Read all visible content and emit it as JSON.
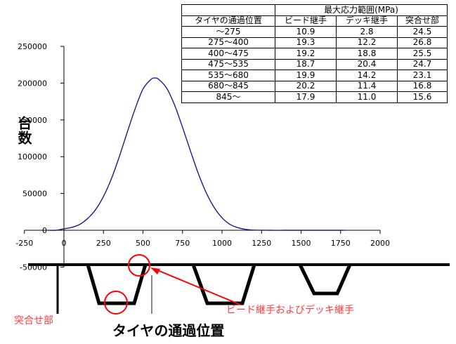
{
  "chart_data": {
    "type": "line",
    "xlabel": "タイヤの通過位置",
    "ylabel": "台数",
    "xlim": [
      -250,
      2000
    ],
    "ylim": [
      -50000,
      250000
    ],
    "x_ticks": [
      -250,
      0,
      250,
      500,
      750,
      1000,
      1250,
      1500,
      1750,
      2000
    ],
    "y_ticks": [
      -50000,
      0,
      50000,
      100000,
      150000,
      200000,
      250000
    ],
    "series_color": "#1a1a8c",
    "series": [
      {
        "x": [
          -100,
          -50,
          0,
          50,
          100,
          150,
          200,
          250,
          300,
          350,
          400,
          450,
          500,
          550,
          575,
          600,
          650,
          700,
          750,
          800,
          850,
          900,
          950,
          1000,
          1050,
          1100,
          1150,
          1200,
          1300,
          1400,
          1500,
          1600,
          1700,
          1770
        ],
        "y": [
          0,
          0,
          2000,
          4000,
          8000,
          16000,
          28000,
          46000,
          70000,
          100000,
          133000,
          165000,
          192000,
          205000,
          207000,
          205000,
          193000,
          170000,
          140000,
          108000,
          77000,
          51000,
          31000,
          17000,
          8000,
          3500,
          1200,
          300,
          0,
          0,
          0,
          0,
          0,
          0
        ]
      }
    ],
    "table": {
      "group_header": "最大応力範囲(MPa)",
      "headers": [
        "タイヤの通過位置",
        "ビード継手",
        "デッキ継手",
        "突合せ部"
      ],
      "rows": [
        [
          "～275",
          "10.9",
          "2.8",
          "24.5"
        ],
        [
          "275～400",
          "19.3",
          "12.2",
          "26.8"
        ],
        [
          "400～475",
          "19.2",
          "18.8",
          "25.5"
        ],
        [
          "475～535",
          "18.7",
          "20.4",
          "24.7"
        ],
        [
          "535～680",
          "19.9",
          "14.2",
          "23.1"
        ],
        [
          "680～845",
          "20.2",
          "11.4",
          "16.8"
        ],
        [
          "845～",
          "17.9",
          "11.0",
          "15.6"
        ]
      ]
    },
    "annotations": {
      "butt_joint": "突合せ部",
      "bead_deck_joint": "ビード継手およびデッキ継手"
    },
    "annotation_color": "#ff2020"
  }
}
